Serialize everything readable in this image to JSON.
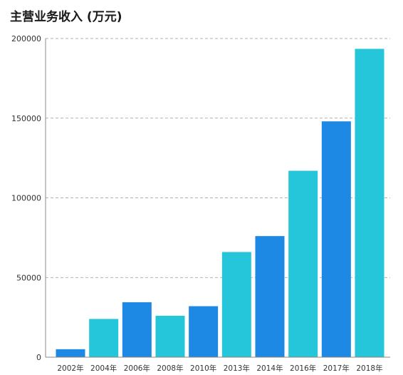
{
  "chart_data": {
    "type": "bar",
    "title": "主营业务收入 (万元)",
    "xlabel": "",
    "ylabel": "",
    "categories": [
      "2002年",
      "2004年",
      "2006年",
      "2008年",
      "2010年",
      "2013年",
      "2014年",
      "2016年",
      "2017年",
      "2018年"
    ],
    "values": [
      5000,
      24000,
      34500,
      26000,
      32000,
      66000,
      76000,
      117000,
      148000,
      193500
    ],
    "ylim": [
      0,
      200000
    ],
    "yticks": [
      0,
      50000,
      100000,
      150000,
      200000
    ],
    "grid": true,
    "legend": "none",
    "colors": [
      "#1e88e5",
      "#26c6da",
      "#1e88e5",
      "#26c6da",
      "#1e88e5",
      "#26c6da",
      "#1e88e5",
      "#26c6da",
      "#1e88e5",
      "#26c6da"
    ]
  }
}
